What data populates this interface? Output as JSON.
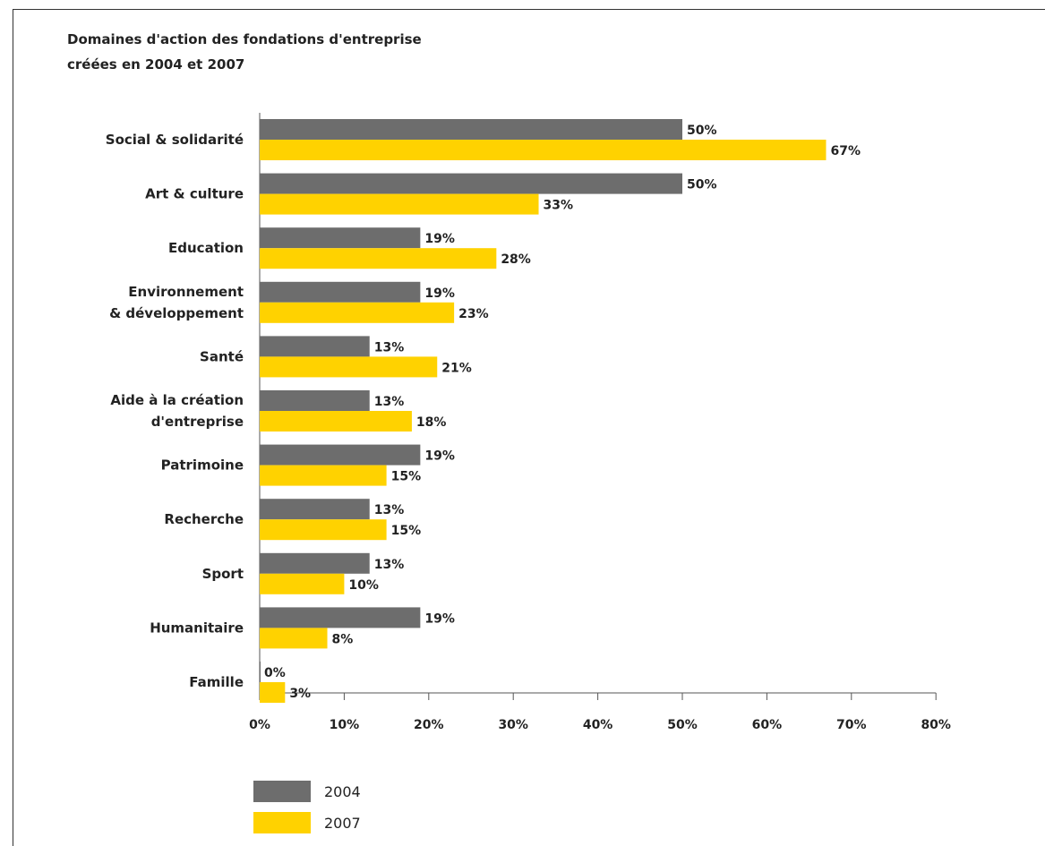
{
  "chart_data": {
    "type": "bar",
    "orientation": "horizontal",
    "title": "Domaines d'action des fondations d'entreprise",
    "subtitle": "créées en 2004 et 2007",
    "categories": [
      [
        "Social & solidarité"
      ],
      [
        "Art & culture"
      ],
      [
        "Education"
      ],
      [
        "Environnement",
        "& développement"
      ],
      [
        "Santé"
      ],
      [
        "Aide à la création",
        "d'entreprise"
      ],
      [
        "Patrimoine"
      ],
      [
        "Recherche"
      ],
      [
        "Sport"
      ],
      [
        "Humanitaire"
      ],
      [
        "Famille"
      ]
    ],
    "series": [
      {
        "name": "2004",
        "color": "#6d6d6d",
        "values": [
          50,
          50,
          19,
          19,
          13,
          13,
          19,
          13,
          13,
          19,
          0
        ]
      },
      {
        "name": "2007",
        "color": "#ffd200",
        "values": [
          67,
          33,
          28,
          23,
          21,
          18,
          15,
          15,
          10,
          8,
          3
        ]
      }
    ],
    "value_labels": {
      "2004": [
        "50%",
        "50%",
        "19%",
        "19%",
        "13%",
        "13%",
        "19%",
        "13%",
        "13%",
        "19%",
        "0%"
      ],
      "2007": [
        "67%",
        "33%",
        "28%",
        "23%",
        "21%",
        "18%",
        "15%",
        "15%",
        "10%",
        "8%",
        "3%"
      ]
    },
    "xlim": [
      0,
      80
    ],
    "xticks": [
      "0%",
      "10%",
      "20%",
      "30%",
      "40%",
      "50%",
      "60%",
      "70%",
      "80%"
    ],
    "grid": false,
    "legend_position": "bottom-left"
  }
}
